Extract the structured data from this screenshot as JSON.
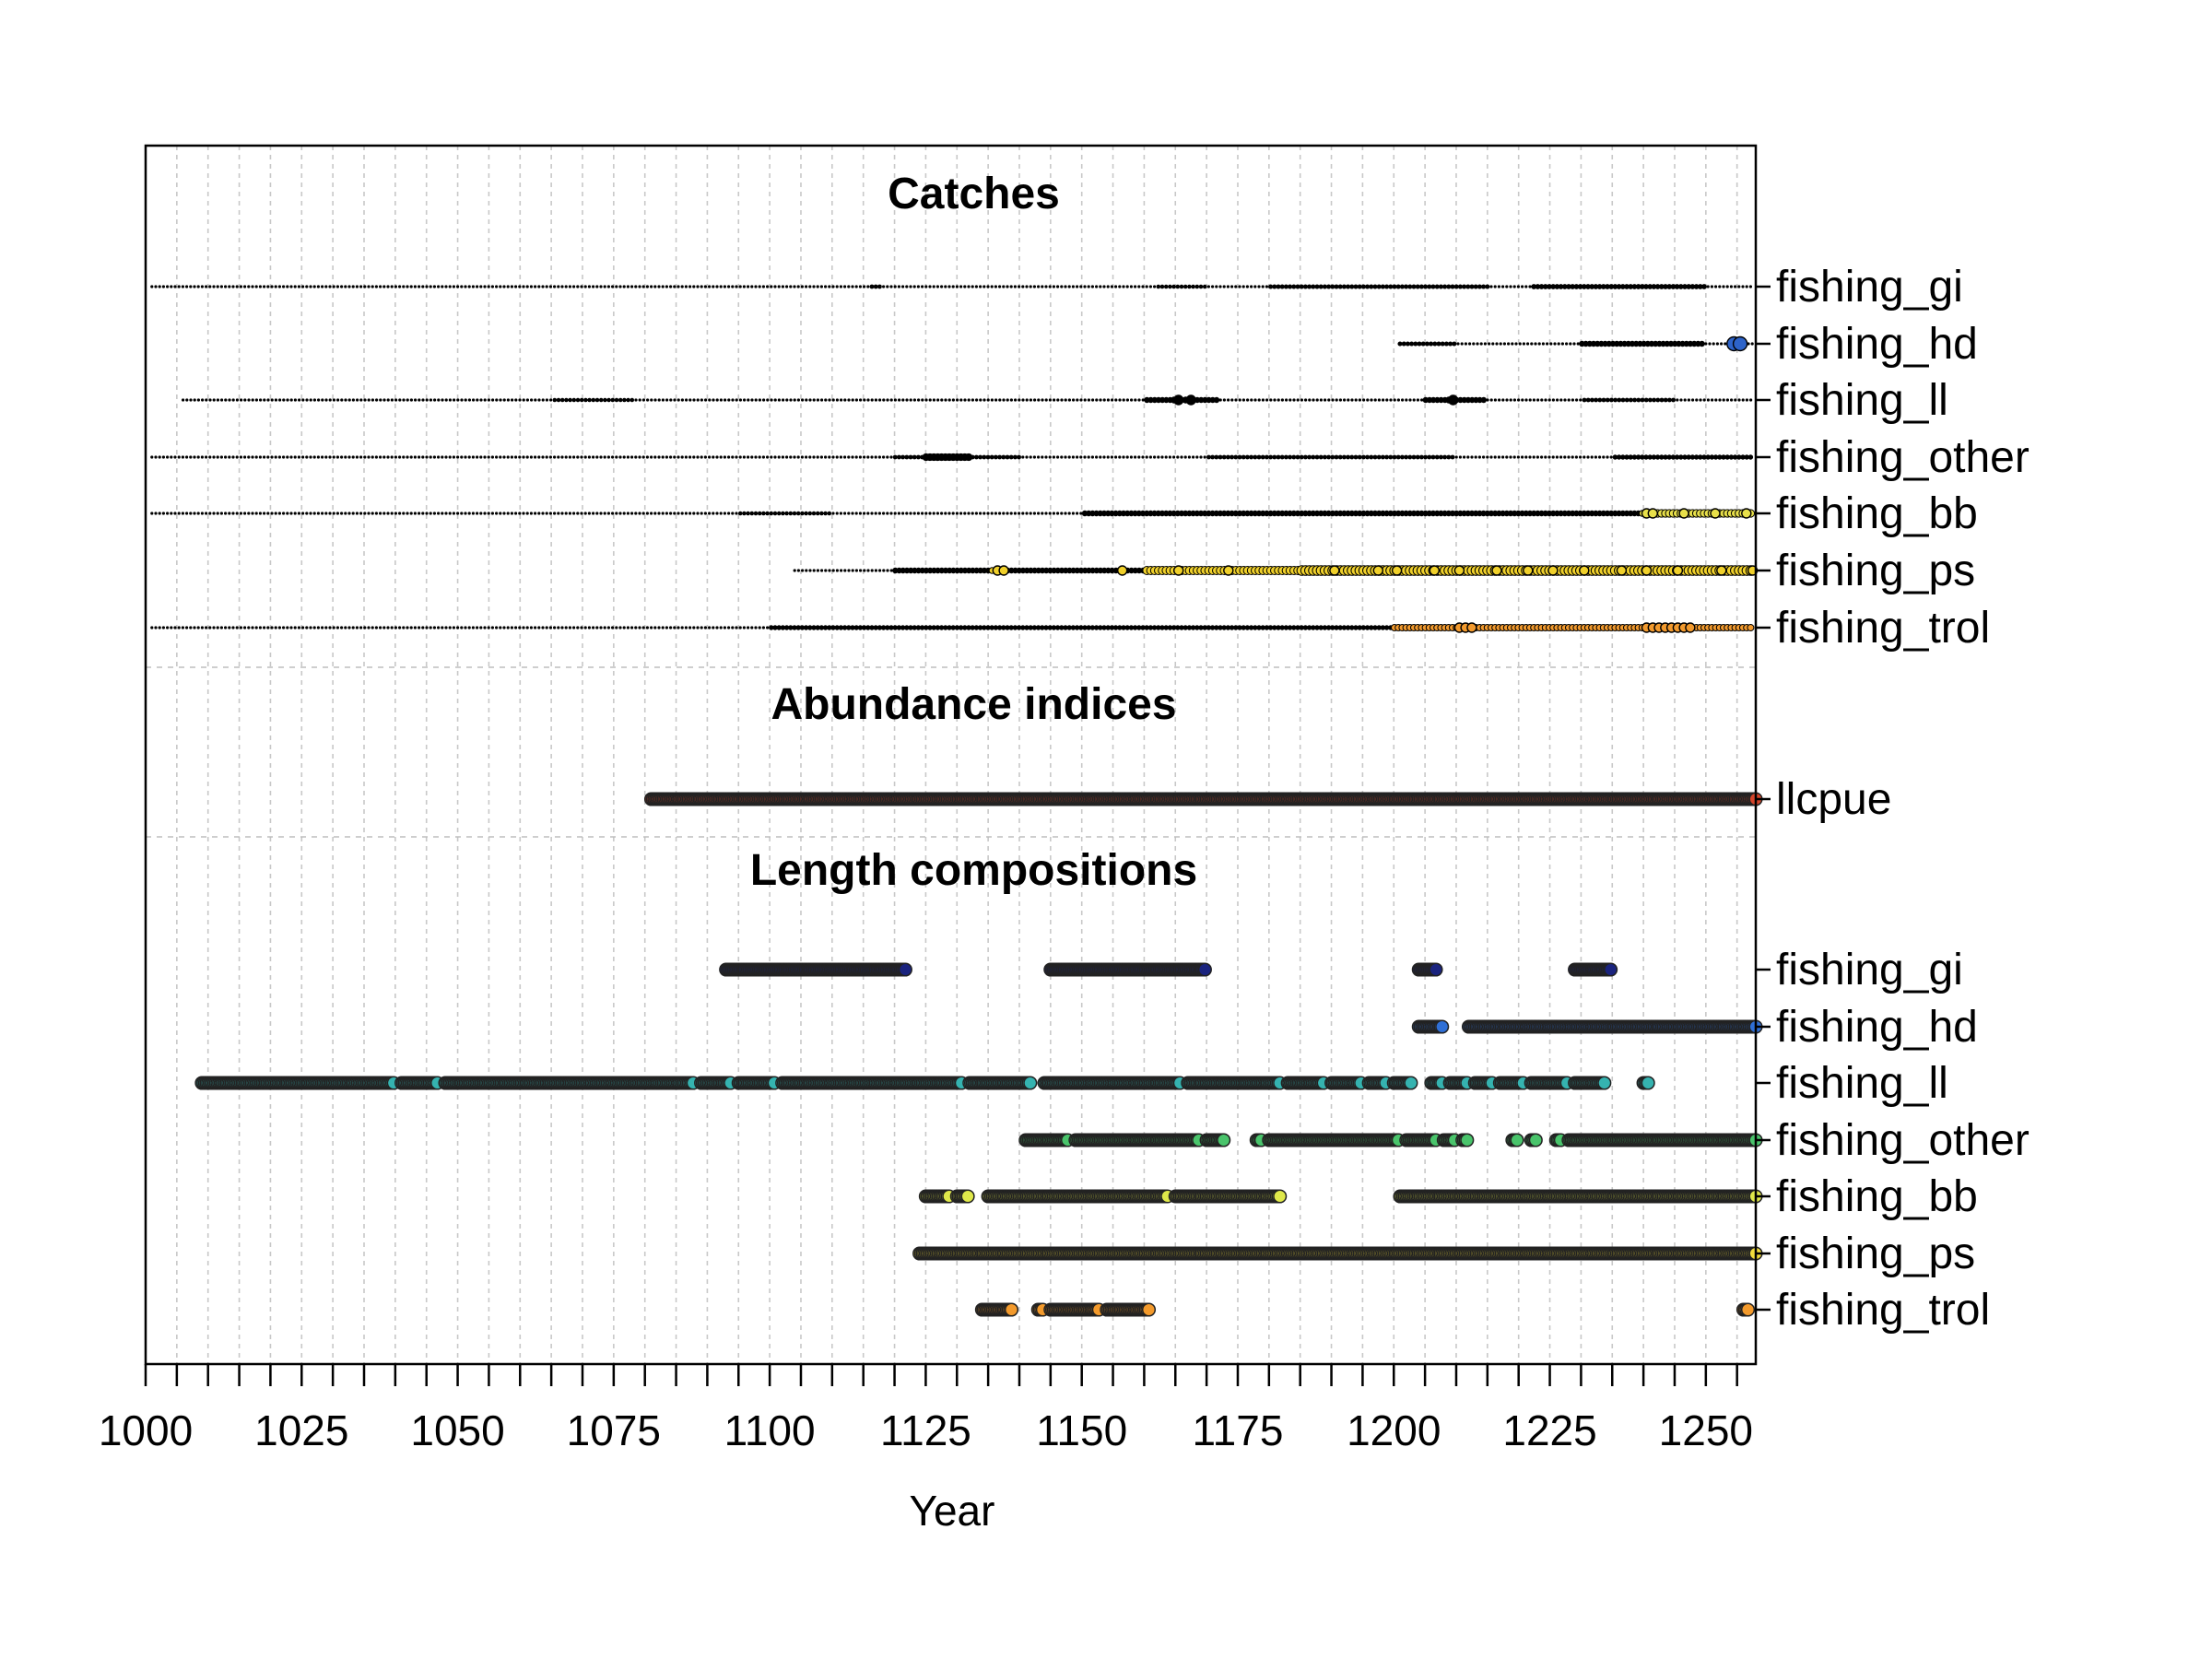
{
  "chart_data": {
    "type": "scatter",
    "xlabel": "Year",
    "xlim": [
      1000,
      1258
    ],
    "x_ticks_major": [
      1000,
      1025,
      1050,
      1075,
      1100,
      1125,
      1150,
      1175,
      1200,
      1225,
      1250
    ],
    "x_tick_minor_step": 5,
    "grid": true,
    "sections": [
      {
        "title": "Catches",
        "series": [
          {
            "name": "fishing_gi",
            "color": "#000000",
            "start": 1001,
            "end": 1258,
            "bigger": [
              [
                1116,
                1118,
                1.5
              ],
              [
                1162,
                1170,
                1.4
              ],
              [
                1180,
                1215,
                1.6
              ],
              [
                1222,
                1250,
                1.8
              ]
            ]
          },
          {
            "name": "fishing_hd",
            "color": "#2d63c9",
            "start": 1201,
            "end": 1256,
            "bigger": [
              [
                1201,
                1210,
                1.6
              ],
              [
                1230,
                1250,
                2.0
              ]
            ],
            "highlight": [
              1254,
              1255
            ]
          },
          {
            "name": "fishing_ll",
            "color": "#000000",
            "start": 1006,
            "end": 1258,
            "bigger": [
              [
                1065,
                1078,
                1.4
              ],
              [
                1160,
                1172,
                2.0
              ],
              [
                1205,
                1215,
                2.0
              ],
              [
                1230,
                1245,
                1.5
              ]
            ],
            "highlight": [
              1165,
              1167,
              1209
            ]
          },
          {
            "name": "fishing_other",
            "color": "#000000",
            "start": 1001,
            "end": 1258,
            "bigger": [
              [
                1120,
                1140,
                1.5
              ],
              [
                1125,
                1132,
                2.3
              ],
              [
                1170,
                1210,
                1.5
              ],
              [
                1235,
                1258,
                1.7
              ]
            ]
          },
          {
            "name": "fishing_bb",
            "color": "#e8e04a",
            "start": 1001,
            "end": 1258,
            "bigger": [
              [
                1095,
                1110,
                1.4
              ],
              [
                1150,
                1258,
                2.0
              ],
              [
                1240,
                1258,
                2.6
              ]
            ],
            "highlight": [
              1240,
              1241,
              1246,
              1251,
              1256
            ]
          },
          {
            "name": "fishing_ps",
            "color": "#f0d02a",
            "start": 1104,
            "end": 1258,
            "bigger": [
              [
                1120,
                1160,
                2.0
              ],
              [
                1160,
                1258,
                2.8
              ],
              [
                1185,
                1258,
                3.3
              ]
            ],
            "highlight": [
              1136,
              1137,
              1156,
              1165,
              1173,
              1190,
              1197,
              1200,
              1206,
              1210,
              1216,
              1221,
              1225,
              1230,
              1236,
              1240,
              1245,
              1252,
              1257
            ]
          },
          {
            "name": "fishing_trol",
            "color": "#f29a2e",
            "start": 1001,
            "end": 1258,
            "bigger": [
              [
                1100,
                1200,
                1.7
              ],
              [
                1200,
                1258,
                2.2
              ]
            ],
            "highlight": [
              1210,
              1211,
              1212,
              1240,
              1241,
              1242,
              1243,
              1244,
              1245,
              1246,
              1247
            ]
          }
        ]
      },
      {
        "title": "Abundance indices",
        "series": [
          {
            "name": "llcpue",
            "color": "#d6452b",
            "segments": [
              [
                1081,
                1258
              ]
            ]
          }
        ]
      },
      {
        "title": "Length compositions",
        "series": [
          {
            "name": "fishing_gi",
            "color": "#1a237e",
            "segments": [
              [
                1093,
                1121
              ],
              [
                1145,
                1169
              ],
              [
                1204,
                1206
              ],
              [
                1229,
                1234
              ]
            ]
          },
          {
            "name": "fishing_hd",
            "color": "#2f6fd6",
            "segments": [
              [
                1204,
                1207
              ],
              [
                1212,
                1258
              ]
            ]
          },
          {
            "name": "fishing_ll",
            "color": "#35b3b0",
            "segments": [
              [
                1009,
                1039
              ],
              [
                1041,
                1046
              ],
              [
                1048,
                1087
              ],
              [
                1089,
                1093
              ],
              [
                1095,
                1100
              ],
              [
                1102,
                1130
              ],
              [
                1132,
                1141
              ],
              [
                1144,
                1165
              ],
              [
                1167,
                1181
              ],
              [
                1183,
                1188
              ],
              [
                1190,
                1194
              ],
              [
                1196,
                1198
              ],
              [
                1200,
                1202
              ],
              [
                1206,
                1207
              ],
              [
                1209,
                1211
              ],
              [
                1213,
                1215
              ],
              [
                1217,
                1220
              ],
              [
                1222,
                1227
              ],
              [
                1229,
                1233
              ],
              [
                1240,
                1240
              ]
            ]
          },
          {
            "name": "fishing_other",
            "color": "#49c46b",
            "segments": [
              [
                1141,
                1147
              ],
              [
                1149,
                1168
              ],
              [
                1170,
                1172
              ],
              [
                1178,
                1178
              ],
              [
                1180,
                1200
              ],
              [
                1202,
                1206
              ],
              [
                1208,
                1209
              ],
              [
                1211,
                1211
              ],
              [
                1219,
                1219
              ],
              [
                1222,
                1222
              ],
              [
                1226,
                1226
              ],
              [
                1228,
                1258
              ]
            ]
          },
          {
            "name": "fishing_bb",
            "color": "#dfe84a",
            "segments": [
              [
                1125,
                1128
              ],
              [
                1130,
                1131
              ],
              [
                1135,
                1163
              ],
              [
                1165,
                1181
              ],
              [
                1201,
                1258
              ]
            ]
          },
          {
            "name": "fishing_ps",
            "color": "#f2dd3c",
            "segments": [
              [
                1124,
                1258
              ]
            ]
          },
          {
            "name": "fishing_trol",
            "color": "#f39a2c",
            "segments": [
              [
                1134,
                1138
              ],
              [
                1143,
                1143
              ],
              [
                1145,
                1152
              ],
              [
                1154,
                1160
              ],
              [
                1256,
                1256
              ]
            ]
          }
        ]
      }
    ]
  }
}
